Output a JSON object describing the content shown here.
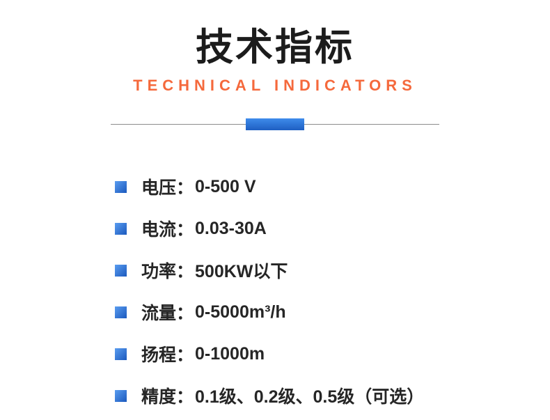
{
  "header": {
    "title": "技术指标",
    "subtitle": "TECHNICAL INDICATORS"
  },
  "specs": [
    {
      "label": "电压：",
      "value": "0-500 V"
    },
    {
      "label": "电流：",
      "value": "0.03-30A"
    },
    {
      "label": "功率：",
      "value": "500KW以下"
    },
    {
      "label": "流量：",
      "value": "0-5000m³/h"
    },
    {
      "label": "扬程：",
      "value": "0-1000m"
    },
    {
      "label": "精度：",
      "value": "0.1级、0.2级、0.5级（可选）"
    }
  ],
  "colors": {
    "accent_orange": "#f5693c",
    "bullet_blue_top": "#5a9df0",
    "bullet_blue_bottom": "#1b59bd",
    "divider_line_gray": "#8c8c8c",
    "title_black": "#1c1c1c"
  }
}
